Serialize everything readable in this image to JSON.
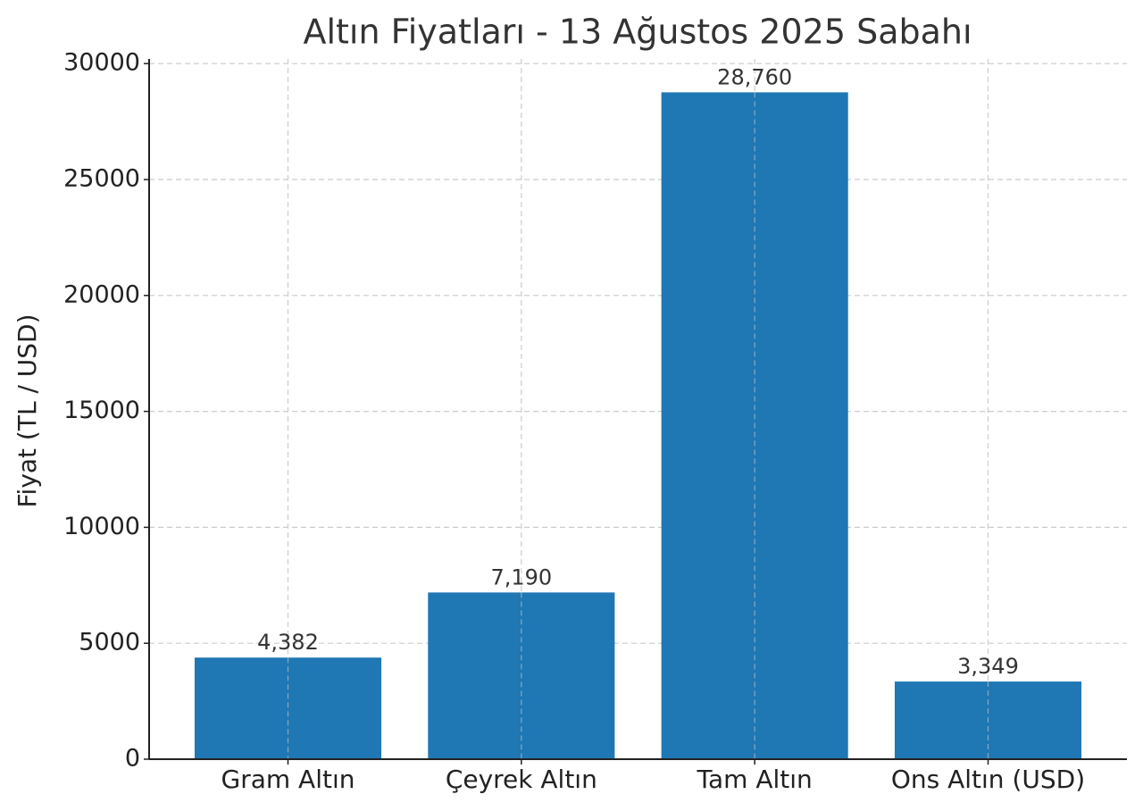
{
  "chart_data": {
    "type": "bar",
    "title": "Altın Fiyatları - 13 Ağustos 2025 Sabahı",
    "ylabel": "Fiyat (TL / USD)",
    "categories": [
      "Gram Altın",
      "Çeyrek Altın",
      "Tam Altın",
      "Ons Altın (USD)"
    ],
    "values": [
      4382,
      7190,
      28760,
      3349
    ],
    "value_labels": [
      "4,382",
      "7,190",
      "28,760",
      "3,349"
    ],
    "color": "#1f77b4",
    "ylim": [
      0,
      30200
    ],
    "yticks": [
      0,
      5000,
      10000,
      15000,
      20000,
      25000,
      30000
    ],
    "grid": true
  }
}
